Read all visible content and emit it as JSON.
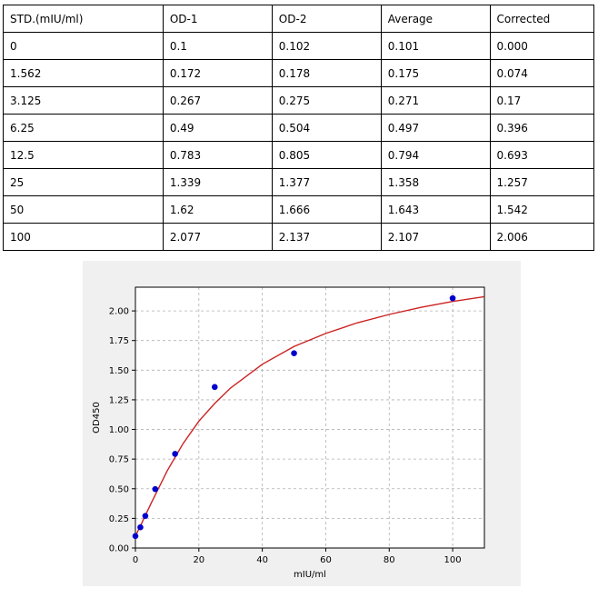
{
  "table": {
    "headers": [
      "STD.(mIU/ml)",
      "OD-1",
      "OD-2",
      "Average",
      "Corrected"
    ],
    "rows": [
      [
        "0",
        "0.1",
        "0.102",
        "0.101",
        "0.000"
      ],
      [
        "1.562",
        "0.172",
        "0.178",
        "0.175",
        "0.074"
      ],
      [
        "3.125",
        "0.267",
        "0.275",
        "0.271",
        "0.17"
      ],
      [
        "6.25",
        "0.49",
        "0.504",
        "0.497",
        "0.396"
      ],
      [
        "12.5",
        "0.783",
        "0.805",
        "0.794",
        "0.693"
      ],
      [
        "25",
        "1.339",
        "1.377",
        "1.358",
        "1.257"
      ],
      [
        "50",
        "1.62",
        "1.666",
        "1.643",
        "1.542"
      ],
      [
        "100",
        "2.077",
        "2.137",
        "2.107",
        "2.006"
      ]
    ]
  },
  "chart_data": {
    "type": "scatter",
    "title": "",
    "xlabel": "mIU/ml",
    "ylabel": "OD450",
    "xlim": [
      0,
      110
    ],
    "ylim": [
      0,
      2.2
    ],
    "xticks": [
      "0",
      "20",
      "40",
      "60",
      "80",
      "100"
    ],
    "yticks": [
      "0.00",
      "0.25",
      "0.50",
      "0.75",
      "1.00",
      "1.25",
      "1.50",
      "1.75",
      "2.00"
    ],
    "grid": true,
    "series": [
      {
        "kind": "points",
        "color": "#0000cc",
        "x": [
          0,
          1.562,
          3.125,
          6.25,
          12.5,
          25,
          50,
          100
        ],
        "y": [
          0.101,
          0.175,
          0.271,
          0.497,
          0.794,
          1.358,
          1.643,
          2.107
        ]
      },
      {
        "kind": "fitted-curve",
        "color": "#cc2222",
        "x": [
          0,
          2,
          5,
          10,
          15,
          20,
          25,
          30,
          40,
          50,
          60,
          70,
          80,
          90,
          100,
          110
        ],
        "y": [
          0.1,
          0.21,
          0.38,
          0.65,
          0.88,
          1.07,
          1.22,
          1.35,
          1.55,
          1.7,
          1.81,
          1.9,
          1.97,
          2.03,
          2.08,
          2.12
        ]
      }
    ]
  }
}
